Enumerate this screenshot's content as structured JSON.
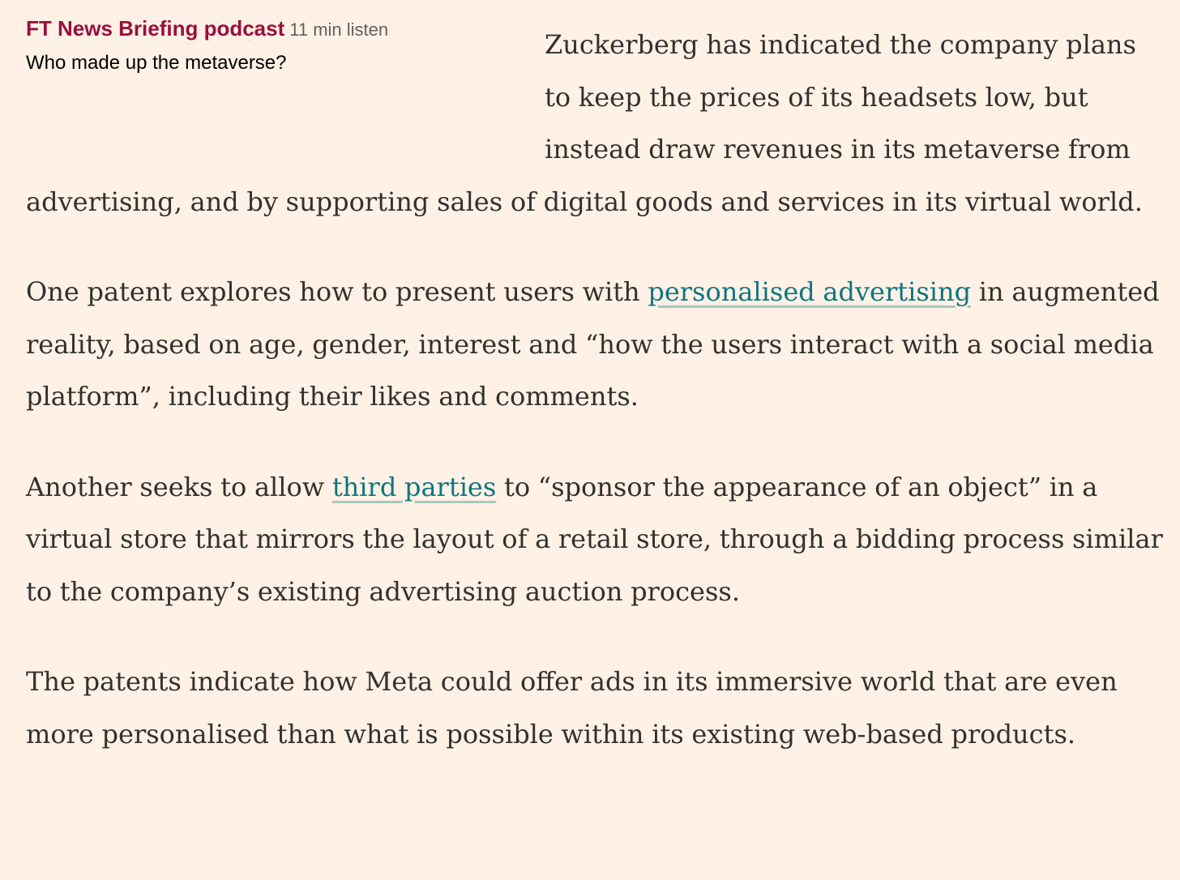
{
  "podcast_promo": {
    "brand": "FT News Briefing podcast",
    "duration": "11 min listen",
    "title": "Who made up the metaverse?"
  },
  "paragraphs": {
    "p1": {
      "text": "Zuckerberg has indicated the company plans to keep the prices of its headsets low, but instead draw revenues in its metaverse from advertising, and by supporting sales of digital goods and services in its virtual world."
    },
    "p2": {
      "before": "One patent explores how to present users with ",
      "link": "personalised advertising",
      "after": " in augmented reality, based on age, gender, interest and “how the users interact with a social media platform”, including their likes and comments."
    },
    "p3": {
      "before": "Another seeks to allow ",
      "link": "third parties",
      "after": " to “sponsor the appearance of an object” in a virtual store that mirrors the layout of a retail store, through a bidding process similar to the company’s existing advertising auction process."
    },
    "p4": {
      "text": "The patents indicate how Meta could offer ads in its immersive world that are even more personalised than what is possible within its existing web-based products."
    }
  },
  "colors": {
    "background": "#fff1e5",
    "body_text": "#33302e",
    "promo_brand": "#990f3d",
    "link": "#0d7680"
  }
}
